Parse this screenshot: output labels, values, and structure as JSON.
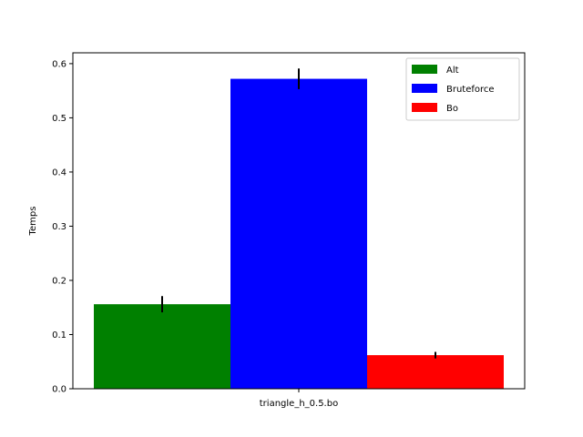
{
  "chart_data": {
    "type": "bar",
    "title": "",
    "xlabel": "",
    "ylabel": "Temps",
    "categories": [
      "triangle_h_0.5.bo"
    ],
    "series": [
      {
        "name": "Alt",
        "values": [
          0.156
        ],
        "errors": [
          0.015
        ],
        "color": "#008000"
      },
      {
        "name": "Bruteforce",
        "values": [
          0.572
        ],
        "errors": [
          0.019
        ],
        "color": "#0000ff"
      },
      {
        "name": "Bo",
        "values": [
          0.062
        ],
        "errors": [
          0.006
        ],
        "color": "#ff0000"
      }
    ],
    "ylim": [
      0,
      0.62
    ],
    "yticks": [
      "0.0",
      "0.1",
      "0.2",
      "0.3",
      "0.4",
      "0.5",
      "0.6"
    ],
    "grid": false,
    "legend_position": "top-right"
  }
}
